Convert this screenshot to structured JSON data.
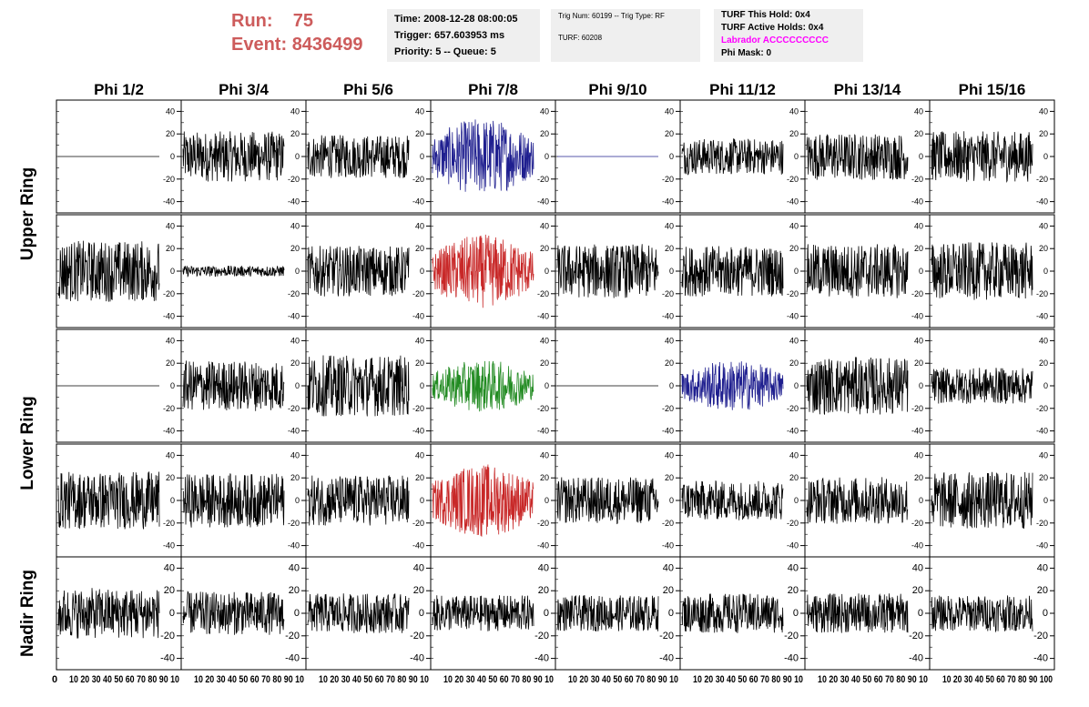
{
  "header": {
    "run_label": "Run:",
    "run_value": "75",
    "event_label": "Event:",
    "event_value": "8436499"
  },
  "info": {
    "time": "Time: 2008-12-28 08:00:05",
    "trigger": "Trigger: 657.603953 ms",
    "priority": "Priority: 5 -- Queue: 5",
    "trig_num": "Trig Num: 60199 -- Trig Type: RF",
    "turf": "TURF: 60208",
    "turf_this_hold": "TURF This Hold: 0x4",
    "turf_active_holds": "TURF Active Holds: 0x4",
    "labrador": "Labrador ACCCCCCCCC",
    "phi_mask": "Phi Mask: 0"
  },
  "colors": {
    "default_trace": "#000000",
    "blue_trace": "#1f1f8f",
    "red_trace": "#c82828",
    "green_trace": "#228b22",
    "header_red": "#cd5c5c",
    "magenta": "#ff00ff",
    "info_bg": "#efefef"
  },
  "chart_data": {
    "type": "line",
    "columns": [
      "Phi 1/2",
      "Phi 3/4",
      "Phi 5/6",
      "Phi 7/8",
      "Phi 9/10",
      "Phi 11/12",
      "Phi 13/14",
      "Phi 15/16"
    ],
    "row_groups": [
      {
        "label": "Upper Ring",
        "rows": [
          0,
          1
        ]
      },
      {
        "label": "Lower Ring",
        "rows": [
          2,
          3
        ]
      },
      {
        "label": "Nadir Ring",
        "rows": [
          4
        ]
      }
    ],
    "xlim": [
      0,
      100
    ],
    "x_ticks": [
      "0",
      "10",
      "20",
      "30",
      "40",
      "50",
      "60",
      "70",
      "80",
      "90",
      "100"
    ],
    "ylim": [
      -50,
      50
    ],
    "y_ticks": [
      "-40",
      "-20",
      "0",
      "20",
      "40"
    ],
    "x_tick_labels_display": [
      "0",
      "10 20 30 40 50 60 70 80 90 10",
      "10 20 30 40 50 60 70 80 90 10",
      "10 20 30 40 50 60 70 80 90 10",
      "10 20 30 40 50 60 70 80 90 10",
      "10 20 30 40 50 60 70 80 90 10",
      "10 20 30 40 50 60 70 80 90 10",
      "10 20 30 40 50 60 70 80 90 10",
      "10 20 30 40 50 60 70 80 90 100"
    ],
    "panels": [
      [
        {
          "color": "default",
          "amplitude": 0
        },
        {
          "color": "default",
          "amplitude": 14
        },
        {
          "color": "default",
          "amplitude": 12
        },
        {
          "color": "blue",
          "amplitude": 18
        },
        {
          "color": "blue",
          "amplitude": 0
        },
        {
          "color": "default",
          "amplitude": 10
        },
        {
          "color": "default",
          "amplitude": 13
        },
        {
          "color": "default",
          "amplitude": 14
        }
      ],
      [
        {
          "color": "default",
          "amplitude": 17
        },
        {
          "color": "default",
          "amplitude": 3
        },
        {
          "color": "default",
          "amplitude": 14
        },
        {
          "color": "red",
          "amplitude": 17
        },
        {
          "color": "default",
          "amplitude": 15
        },
        {
          "color": "default",
          "amplitude": 14
        },
        {
          "color": "default",
          "amplitude": 15
        },
        {
          "color": "default",
          "amplitude": 16
        }
      ],
      [
        {
          "color": "default",
          "amplitude": 0
        },
        {
          "color": "default",
          "amplitude": 14
        },
        {
          "color": "default",
          "amplitude": 17
        },
        {
          "color": "green",
          "amplitude": 12
        },
        {
          "color": "default",
          "amplitude": 0
        },
        {
          "color": "blue",
          "amplitude": 12
        },
        {
          "color": "default",
          "amplitude": 16
        },
        {
          "color": "default",
          "amplitude": 10
        }
      ],
      [
        {
          "color": "default",
          "amplitude": 16
        },
        {
          "color": "default",
          "amplitude": 15
        },
        {
          "color": "default",
          "amplitude": 14
        },
        {
          "color": "red",
          "amplitude": 17
        },
        {
          "color": "default",
          "amplitude": 13
        },
        {
          "color": "default",
          "amplitude": 11
        },
        {
          "color": "default",
          "amplitude": 13
        },
        {
          "color": "default",
          "amplitude": 16
        }
      ],
      [
        {
          "color": "default",
          "amplitude": 14
        },
        {
          "color": "default",
          "amplitude": 12
        },
        {
          "color": "default",
          "amplitude": 11
        },
        {
          "color": "default",
          "amplitude": 10
        },
        {
          "color": "default",
          "amplitude": 10
        },
        {
          "color": "default",
          "amplitude": 11
        },
        {
          "color": "default",
          "amplitude": 11
        },
        {
          "color": "default",
          "amplitude": 10
        }
      ]
    ]
  }
}
